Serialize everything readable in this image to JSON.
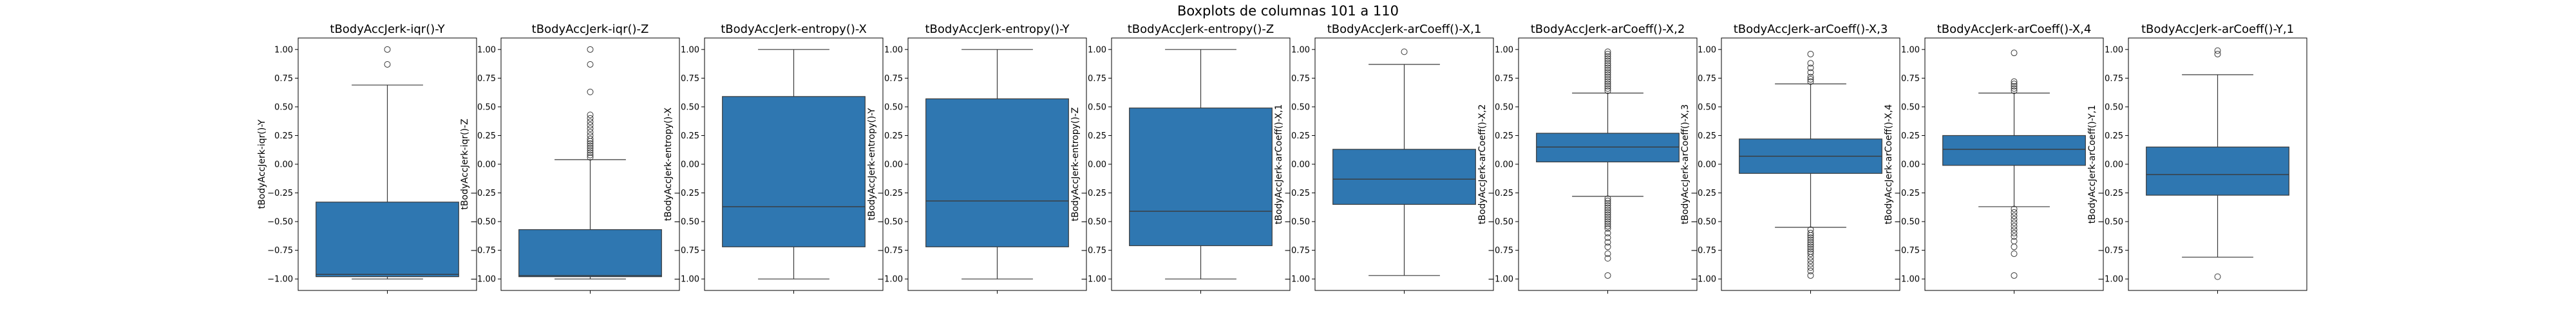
{
  "chart_data": {
    "type": "boxplot",
    "title": "Boxplots de columnas 101 a 110",
    "ylim": [
      -1.1,
      1.1
    ],
    "yticks": [
      -1.0,
      -0.75,
      -0.5,
      -0.25,
      0.0,
      0.25,
      0.5,
      0.75,
      1.0
    ],
    "ytick_labels": [
      "−1.00",
      "−0.75",
      "−0.50",
      "−0.25",
      "0.00",
      "0.25",
      "0.50",
      "0.75",
      "1.00"
    ],
    "color": "#2f77b1",
    "panels": [
      {
        "title": "tBodyAccJerk-iqr()-Y",
        "ylabel": "tBodyAccJerk-iqr()-Y",
        "whislo": -1.0,
        "q1": -0.98,
        "med": -0.96,
        "q3": -0.33,
        "whishi": 0.69,
        "fliers": [
          0.87,
          1.0
        ]
      },
      {
        "title": "tBodyAccJerk-iqr()-Z",
        "ylabel": "tBodyAccJerk-iqr()-Z",
        "whislo": -1.0,
        "q1": -0.98,
        "med": -0.97,
        "q3": -0.57,
        "whishi": 0.04,
        "fliers": [
          0.06,
          0.08,
          0.1,
          0.12,
          0.14,
          0.16,
          0.18,
          0.2,
          0.22,
          0.25,
          0.28,
          0.31,
          0.34,
          0.37,
          0.4,
          0.43,
          0.63,
          0.87,
          1.0
        ]
      },
      {
        "title": "tBodyAccJerk-entropy()-X",
        "ylabel": "tBodyAccJerk-entropy()-X",
        "whislo": -1.0,
        "q1": -0.72,
        "med": -0.37,
        "q3": 0.59,
        "whishi": 1.0,
        "fliers": []
      },
      {
        "title": "tBodyAccJerk-entropy()-Y",
        "ylabel": "tBodyAccJerk-entropy()-Y",
        "whislo": -1.0,
        "q1": -0.72,
        "med": -0.32,
        "q3": 0.57,
        "whishi": 1.0,
        "fliers": []
      },
      {
        "title": "tBodyAccJerk-entropy()-Z",
        "ylabel": "tBodyAccJerk-entropy()-Z",
        "whislo": -1.0,
        "q1": -0.71,
        "med": -0.41,
        "q3": 0.49,
        "whishi": 1.0,
        "fliers": []
      },
      {
        "title": "tBodyAccJerk-arCoeff()-X,1",
        "ylabel": "tBodyAccJerk-arCoeff()-X,1",
        "whislo": -0.97,
        "q1": -0.35,
        "med": -0.13,
        "q3": 0.13,
        "whishi": 0.87,
        "fliers": [
          0.98
        ]
      },
      {
        "title": "tBodyAccJerk-arCoeff()-X,2",
        "ylabel": "tBodyAccJerk-arCoeff()-X,2",
        "whislo": -0.28,
        "q1": 0.02,
        "med": 0.15,
        "q3": 0.27,
        "whishi": 0.62,
        "fliers": [
          0.64,
          0.66,
          0.68,
          0.7,
          0.72,
          0.74,
          0.76,
          0.78,
          0.8,
          0.82,
          0.84,
          0.86,
          0.88,
          0.9,
          0.92,
          0.94,
          0.96,
          0.98,
          -0.3,
          -0.32,
          -0.34,
          -0.36,
          -0.38,
          -0.4,
          -0.42,
          -0.44,
          -0.46,
          -0.48,
          -0.5,
          -0.52,
          -0.54,
          -0.56,
          -0.6,
          -0.64,
          -0.68,
          -0.72,
          -0.78,
          -0.82,
          -0.97
        ]
      },
      {
        "title": "tBodyAccJerk-arCoeff()-X,3",
        "ylabel": "tBodyAccJerk-arCoeff()-X,3",
        "whislo": -0.55,
        "q1": -0.08,
        "med": 0.07,
        "q3": 0.22,
        "whishi": 0.7,
        "fliers": [
          0.72,
          0.74,
          0.76,
          0.8,
          0.84,
          0.88,
          0.96,
          -0.57,
          -0.6,
          -0.62,
          -0.64,
          -0.66,
          -0.68,
          -0.7,
          -0.72,
          -0.74,
          -0.76,
          -0.78,
          -0.81,
          -0.84,
          -0.87,
          -0.9,
          -0.93,
          -0.97
        ]
      },
      {
        "title": "tBodyAccJerk-arCoeff()-X,4",
        "ylabel": "tBodyAccJerk-arCoeff()-X,4",
        "whislo": -0.37,
        "q1": -0.01,
        "med": 0.13,
        "q3": 0.25,
        "whishi": 0.62,
        "fliers": [
          0.64,
          0.66,
          0.68,
          0.7,
          0.72,
          0.97,
          -0.39,
          -0.42,
          -0.45,
          -0.48,
          -0.51,
          -0.54,
          -0.57,
          -0.6,
          -0.63,
          -0.67,
          -0.72,
          -0.78,
          -0.97
        ]
      },
      {
        "title": "tBodyAccJerk-arCoeff()-Y,1",
        "ylabel": "tBodyAccJerk-arCoeff()-Y,1",
        "whislo": -0.81,
        "q1": -0.27,
        "med": -0.09,
        "q3": 0.15,
        "whishi": 0.78,
        "fliers": [
          0.96,
          0.99,
          -0.98
        ]
      }
    ]
  }
}
